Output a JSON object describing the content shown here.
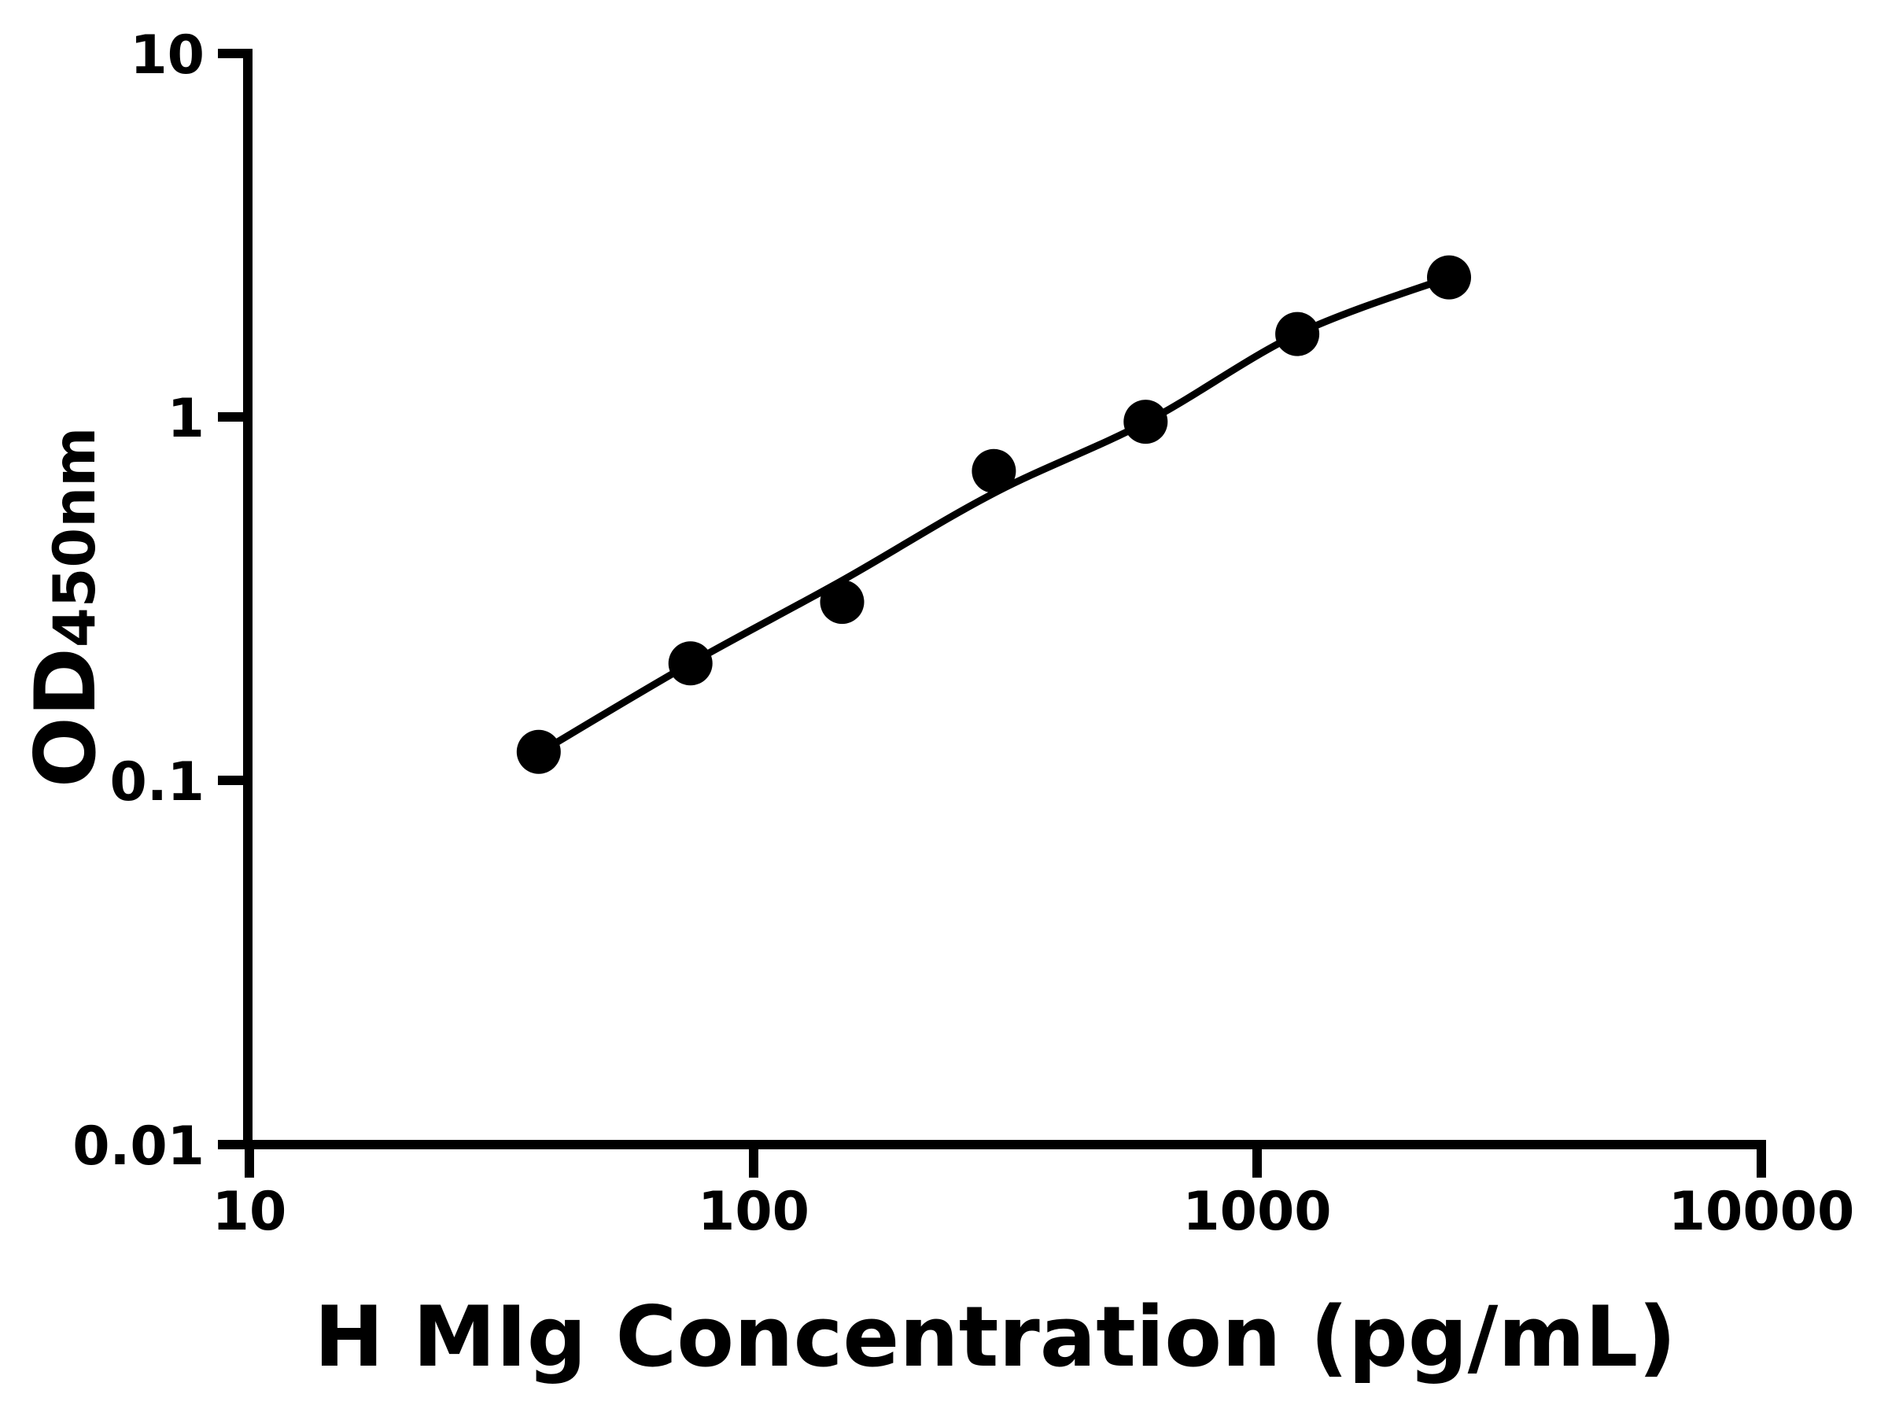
{
  "figure": {
    "background_color": "#ffffff",
    "ink_color": "#000000"
  },
  "chart_data": {
    "type": "scatter",
    "title": "",
    "xlabel": "H MIg Concentration (pg/mL)",
    "ylabel_main": "OD",
    "ylabel_subscript": "450nm",
    "x_scale": "log",
    "y_scale": "log",
    "xlim": [
      10,
      10000
    ],
    "ylim": [
      0.01,
      10
    ],
    "grid": false,
    "legend": null,
    "x_ticks": [
      10,
      100,
      1000,
      10000
    ],
    "x_tick_labels": [
      "10",
      "100",
      "1000",
      "10000"
    ],
    "y_ticks": [
      10,
      1,
      0.1,
      0.01
    ],
    "y_tick_labels": [
      "10",
      "1",
      "0.1",
      "0.01"
    ],
    "series": [
      {
        "name": "standard-points",
        "type": "scatter",
        "marker": "filled-circle",
        "color": "#000000",
        "points": [
          {
            "x": 37.5,
            "y": 0.12
          },
          {
            "x": 75,
            "y": 0.21
          },
          {
            "x": 150,
            "y": 0.31
          },
          {
            "x": 300,
            "y": 0.71
          },
          {
            "x": 600,
            "y": 0.97
          },
          {
            "x": 1200,
            "y": 1.69
          },
          {
            "x": 2400,
            "y": 2.42
          }
        ]
      },
      {
        "name": "fit-curve",
        "type": "line",
        "color": "#000000",
        "points": [
          {
            "x": 37.5,
            "y": 0.119
          },
          {
            "x": 75,
            "y": 0.21
          },
          {
            "x": 150,
            "y": 0.355
          },
          {
            "x": 300,
            "y": 0.617
          },
          {
            "x": 600,
            "y": 0.966
          },
          {
            "x": 1200,
            "y": 1.69
          },
          {
            "x": 2400,
            "y": 2.42
          }
        ]
      }
    ]
  }
}
